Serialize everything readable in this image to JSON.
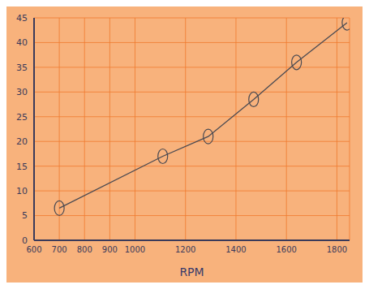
{
  "chart_data": {
    "type": "line",
    "x_label": "RPM",
    "x": [
      700,
      1110,
      1290,
      1470,
      1640,
      1840
    ],
    "values": [
      6.5,
      17,
      21,
      28.5,
      36,
      44
    ],
    "color": "#4a4a52",
    "marker": "o",
    "line_style": "solid",
    "xlim": [
      600,
      1850
    ],
    "xticks": [
      600,
      700,
      800,
      900,
      1000,
      1200,
      1400,
      1600,
      1800
    ],
    "ylim": [
      0,
      45
    ],
    "yticks": [
      0,
      5,
      10,
      15,
      20,
      25,
      30,
      35,
      40,
      45
    ],
    "grid": true
  }
}
